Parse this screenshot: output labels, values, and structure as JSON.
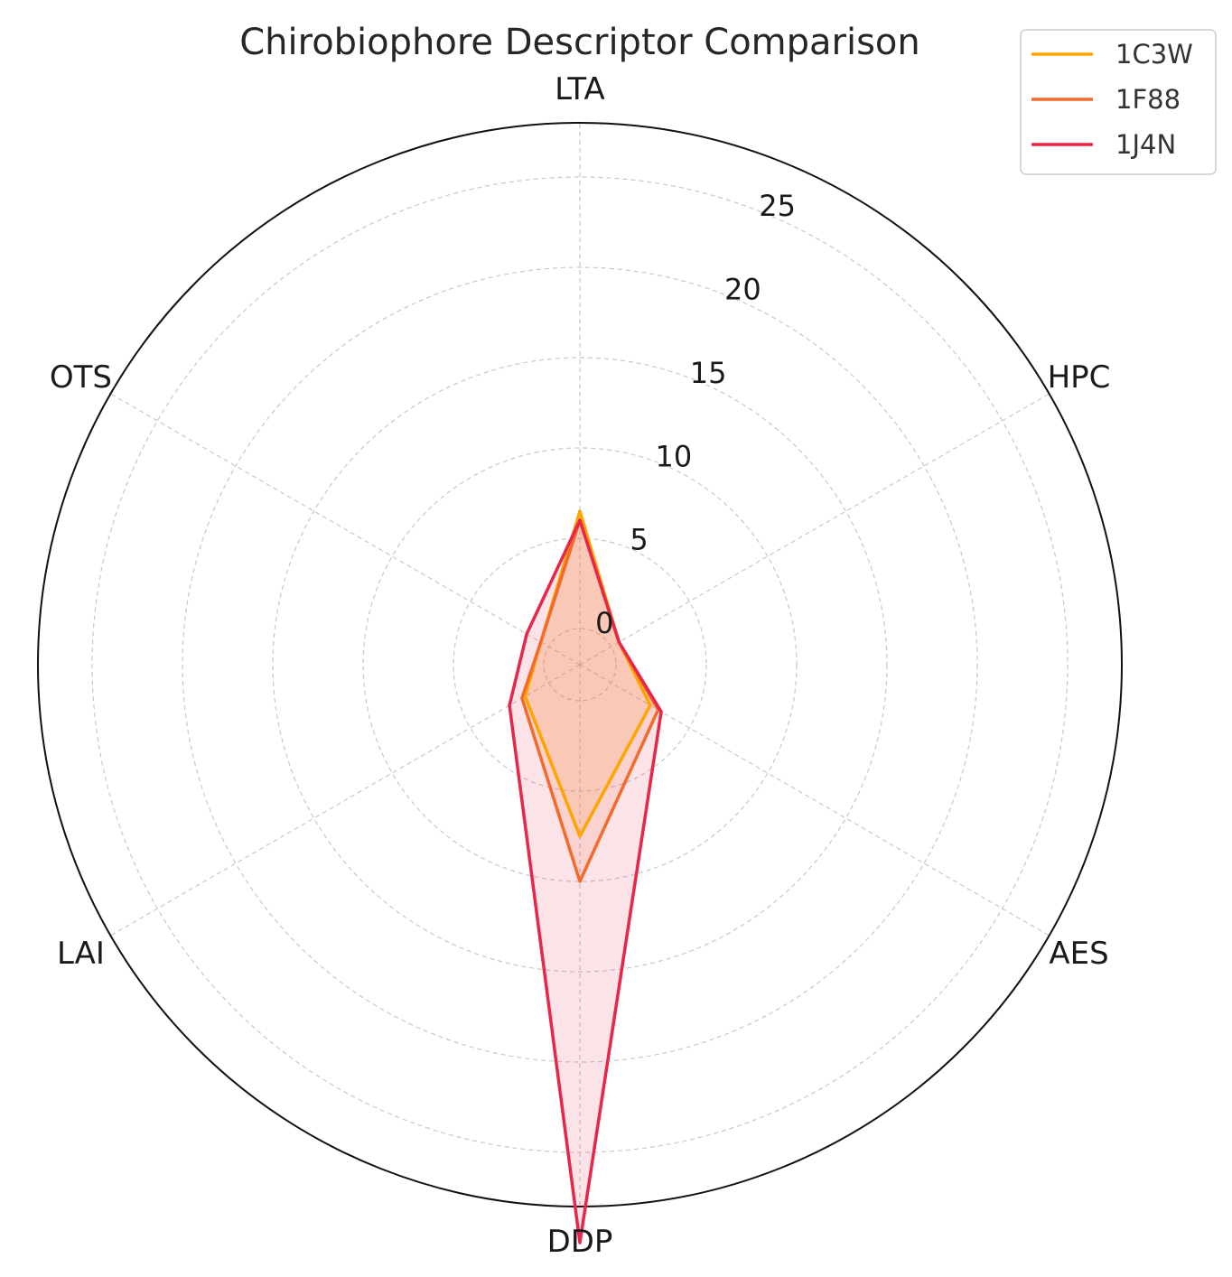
{
  "chart_data": {
    "type": "radar",
    "title": "Chirobiophore Descriptor Comparison",
    "axes": [
      "LTA",
      "HPC",
      "AES",
      "DDP",
      "LAI",
      "OTS"
    ],
    "rlim": [
      -2,
      28
    ],
    "rticks": [
      0,
      5,
      10,
      15,
      20,
      25
    ],
    "rtick_labels": [
      "0",
      "5",
      "10",
      "15",
      "20",
      "25"
    ],
    "grid": true,
    "legend_position": "top-right",
    "series": [
      {
        "name": "1C3W",
        "values": [
          6.5,
          0.5,
          2.5,
          7.5,
          1.5,
          0.5
        ],
        "color": "#ffa500",
        "fill_color": "#ffa500"
      },
      {
        "name": "1F88",
        "values": [
          6.0,
          0.5,
          3.0,
          10.0,
          1.7,
          0.5
        ],
        "color": "#f26b2c",
        "fill_color": "#f26b2c"
      },
      {
        "name": "1J4N",
        "values": [
          6.0,
          0.5,
          3.2,
          30.0,
          2.5,
          1.4
        ],
        "color": "#e8264a",
        "fill_color": "#e8264a"
      }
    ]
  }
}
